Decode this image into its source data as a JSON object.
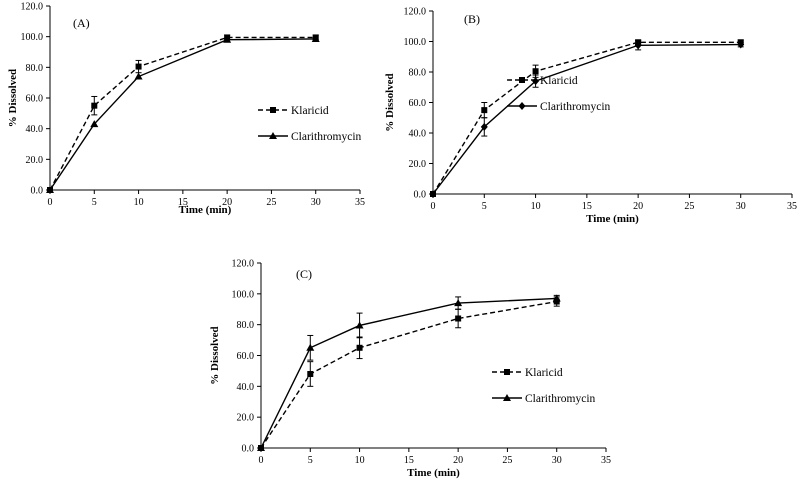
{
  "chart_data": [
    {
      "type": "line",
      "panel_label": "(A)",
      "xlabel": "Time  (min)",
      "ylabel": "% Dissolved",
      "xlim": [
        0,
        35
      ],
      "ylim": [
        0,
        120
      ],
      "x_ticks": [
        "0",
        "5",
        "10",
        "15",
        "20",
        "25",
        "30",
        "35"
      ],
      "y_ticks": [
        "0.0",
        "20.0",
        "40.0",
        "60.0",
        "80.0",
        "100.0",
        "120.0"
      ],
      "grid": false,
      "legend_position": "right",
      "x": [
        0,
        5,
        10,
        20,
        30
      ],
      "series": [
        {
          "name": "Klaricid",
          "style": "dashed",
          "marker": "square",
          "values": [
            0,
            55,
            80.5,
            99.5,
            99.5
          ],
          "errors": [
            0,
            6,
            4,
            1.5,
            1.5
          ]
        },
        {
          "name": "Clarithromycin",
          "style": "solid",
          "marker": "triangle",
          "values": [
            0,
            43,
            74,
            98,
            98.5
          ],
          "errors": [
            0,
            0,
            0,
            0,
            0
          ]
        }
      ]
    },
    {
      "type": "line",
      "panel_label": "(B)",
      "xlabel": "Time (min)",
      "ylabel": "% Dissolved",
      "xlim": [
        0,
        35
      ],
      "ylim": [
        0,
        120
      ],
      "x_ticks": [
        "0",
        "5",
        "10",
        "15",
        "20",
        "25",
        "30",
        "35"
      ],
      "y_ticks": [
        "0.0",
        "20.0",
        "40.0",
        "60.0",
        "80.0",
        "100.0",
        "120.0"
      ],
      "grid": false,
      "legend_position": "right",
      "x": [
        0,
        5,
        10,
        20,
        30
      ],
      "series": [
        {
          "name": "Klaricid",
          "style": "dashed",
          "marker": "square",
          "values": [
            0,
            55,
            80.5,
            99.5,
            99.5
          ],
          "errors": [
            0,
            5,
            4,
            1.5,
            1.5
          ]
        },
        {
          "name": "Clarithromycin",
          "style": "solid",
          "marker": "diamond",
          "values": [
            0,
            44,
            74,
            97.5,
            98
          ],
          "errors": [
            0,
            6,
            4,
            3,
            1.5
          ]
        }
      ]
    },
    {
      "type": "line",
      "panel_label": "(C)",
      "xlabel": "Time  (min)",
      "ylabel": "% Dissolved",
      "xlim": [
        0,
        35
      ],
      "ylim": [
        0,
        120
      ],
      "x_ticks": [
        "0",
        "5",
        "10",
        "15",
        "20",
        "25",
        "30",
        "35"
      ],
      "y_ticks": [
        "0.0",
        "20.0",
        "40.0",
        "60.0",
        "80.0",
        "100.0",
        "120.0"
      ],
      "grid": false,
      "legend_position": "right",
      "x": [
        0,
        5,
        10,
        20,
        30
      ],
      "series": [
        {
          "name": "Klaricid",
          "style": "dashed",
          "marker": "square",
          "values": [
            0,
            48,
            65,
            84,
            95
          ],
          "errors": [
            0,
            8,
            7,
            6,
            3
          ]
        },
        {
          "name": "Clarithromycin",
          "style": "solid",
          "marker": "triangle",
          "values": [
            0,
            65,
            79.5,
            94,
            97
          ],
          "errors": [
            0,
            8,
            8,
            4,
            2
          ]
        }
      ]
    }
  ]
}
